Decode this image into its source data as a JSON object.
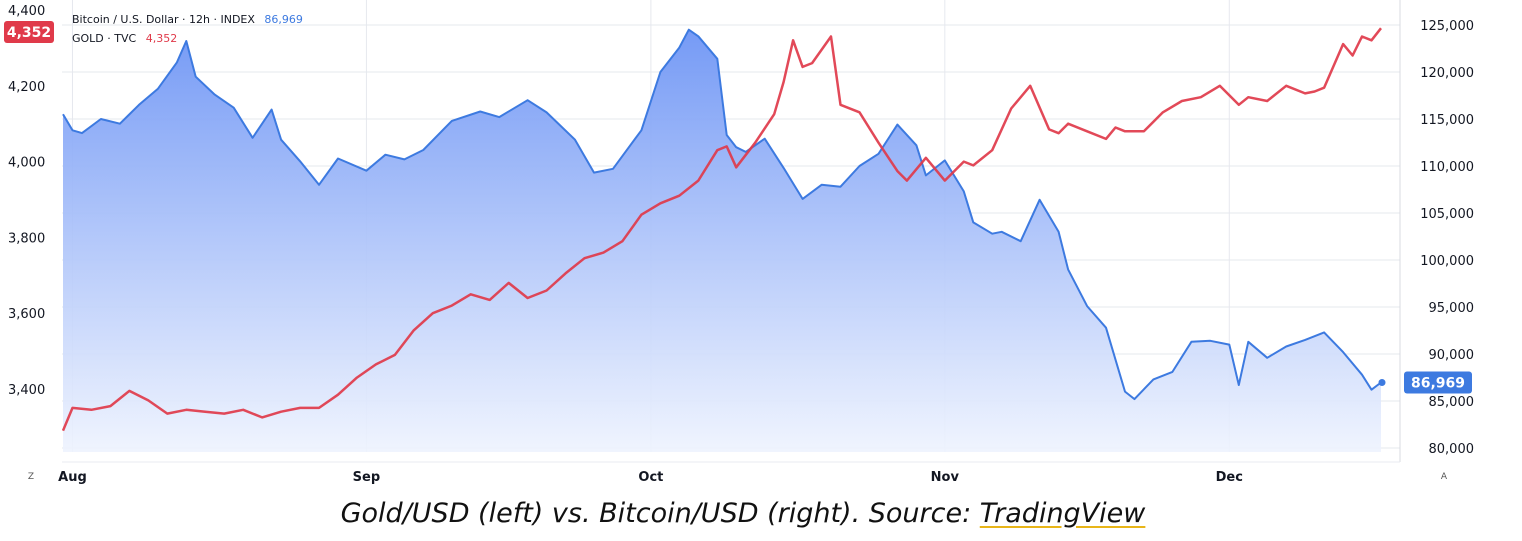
{
  "legend": {
    "btc_label": "Bitcoin / U.S. Dollar · 12h · INDEX",
    "btc_value": "86,969",
    "gold_label": "GOLD · TVC",
    "gold_value": "4,352"
  },
  "badges": {
    "gold_last": "4,352",
    "btc_last": "86,969"
  },
  "controls": {
    "left_button": "Z",
    "right_button": "A"
  },
  "caption": {
    "text": "Gold/USD (left) vs. Bitcoin/USD (right). Source: ",
    "link": "TradingView"
  },
  "colors": {
    "gold": "#e03a4a",
    "btc": "#3d7ae0",
    "btc_fill_top": "#6e95f5",
    "btc_fill_bottom": "#eef3fe",
    "overlap": "#a24a8a",
    "grid": "#e6e8ee"
  },
  "chart_data": {
    "type": "line",
    "x_axis": {
      "type": "time",
      "range": [
        "2025-07-31",
        "2025-12-17"
      ],
      "ticks": [
        {
          "date": "2025-08-01",
          "label": "Aug"
        },
        {
          "date": "2025-09-01",
          "label": "Sep"
        },
        {
          "date": "2025-10-01",
          "label": "Oct"
        },
        {
          "date": "2025-11-01",
          "label": "Nov"
        },
        {
          "date": "2025-12-01",
          "label": "Dec"
        }
      ]
    },
    "left_axis": {
      "range": [
        3280,
        4400
      ],
      "ticks": [
        "3,400",
        "3,600",
        "3,800",
        "4,000",
        "4,200",
        "4,400"
      ]
    },
    "right_axis": {
      "range": [
        80000,
        126000
      ],
      "ticks": [
        "80,000",
        "85,000",
        "90,000",
        "95,000",
        "100,000",
        "105,000",
        "110,000",
        "115,000",
        "120,000",
        "125,000"
      ]
    },
    "grid": true,
    "legend_position": "top-left",
    "series": [
      {
        "name": "Bitcoin / U.S. Dollar · 12h · INDEX",
        "axis": "right",
        "style": "area",
        "x": [
          "2025-07-31",
          "2025-08-01",
          "2025-08-02",
          "2025-08-04",
          "2025-08-06",
          "2025-08-08",
          "2025-08-10",
          "2025-08-12",
          "2025-08-13",
          "2025-08-14",
          "2025-08-16",
          "2025-08-18",
          "2025-08-20",
          "2025-08-22",
          "2025-08-23",
          "2025-08-25",
          "2025-08-27",
          "2025-08-29",
          "2025-09-01",
          "2025-09-03",
          "2025-09-05",
          "2025-09-07",
          "2025-09-10",
          "2025-09-13",
          "2025-09-15",
          "2025-09-18",
          "2025-09-20",
          "2025-09-23",
          "2025-09-25",
          "2025-09-27",
          "2025-09-30",
          "2025-10-02",
          "2025-10-04",
          "2025-10-05",
          "2025-10-06",
          "2025-10-08",
          "2025-10-09",
          "2025-10-10",
          "2025-10-11",
          "2025-10-13",
          "2025-10-15",
          "2025-10-17",
          "2025-10-19",
          "2025-10-21",
          "2025-10-23",
          "2025-10-25",
          "2025-10-27",
          "2025-10-29",
          "2025-10-30",
          "2025-11-01",
          "2025-11-03",
          "2025-11-04",
          "2025-11-06",
          "2025-11-07",
          "2025-11-09",
          "2025-11-11",
          "2025-11-13",
          "2025-11-14",
          "2025-11-16",
          "2025-11-18",
          "2025-11-20",
          "2025-11-21",
          "2025-11-23",
          "2025-11-25",
          "2025-11-27",
          "2025-11-29",
          "2025-12-01",
          "2025-12-02",
          "2025-12-03",
          "2025-12-05",
          "2025-12-07",
          "2025-12-09",
          "2025-12-11",
          "2025-12-13",
          "2025-12-15",
          "2025-12-16",
          "2025-12-17"
        ],
        "values": [
          115500,
          113800,
          113500,
          115000,
          114500,
          116500,
          118200,
          121000,
          123300,
          119500,
          117600,
          116200,
          113000,
          116000,
          112800,
          110500,
          108000,
          110800,
          109500,
          111200,
          110700,
          111700,
          114800,
          115800,
          115200,
          117000,
          115700,
          112800,
          109300,
          109700,
          113800,
          120000,
          122600,
          124500,
          123800,
          121400,
          113300,
          112000,
          111500,
          112900,
          109800,
          106500,
          108000,
          107800,
          110000,
          111300,
          114400,
          112200,
          109000,
          110600,
          107300,
          104000,
          102800,
          103000,
          102000,
          106400,
          103000,
          99000,
          95100,
          92800,
          86000,
          85200,
          87300,
          88100,
          91300,
          91400,
          91000,
          86700,
          91300,
          89600,
          90800,
          91500,
          92300,
          90200,
          87800,
          86200,
          86969
        ]
      },
      {
        "name": "GOLD · TVC",
        "axis": "left",
        "style": "line",
        "x": [
          "2025-07-31",
          "2025-08-01",
          "2025-08-03",
          "2025-08-05",
          "2025-08-07",
          "2025-08-09",
          "2025-08-11",
          "2025-08-13",
          "2025-08-15",
          "2025-08-17",
          "2025-08-19",
          "2025-08-21",
          "2025-08-23",
          "2025-08-25",
          "2025-08-27",
          "2025-08-29",
          "2025-08-31",
          "2025-09-02",
          "2025-09-04",
          "2025-09-06",
          "2025-09-08",
          "2025-09-10",
          "2025-09-12",
          "2025-09-14",
          "2025-09-16",
          "2025-09-18",
          "2025-09-20",
          "2025-09-22",
          "2025-09-24",
          "2025-09-26",
          "2025-09-28",
          "2025-09-30",
          "2025-10-02",
          "2025-10-04",
          "2025-10-06",
          "2025-10-08",
          "2025-10-09",
          "2025-10-10",
          "2025-10-12",
          "2025-10-14",
          "2025-10-15",
          "2025-10-16",
          "2025-10-17",
          "2025-10-18",
          "2025-10-20",
          "2025-10-21",
          "2025-10-23",
          "2025-10-25",
          "2025-10-27",
          "2025-10-28",
          "2025-10-30",
          "2025-11-01",
          "2025-11-03",
          "2025-11-04",
          "2025-11-06",
          "2025-11-08",
          "2025-11-10",
          "2025-11-12",
          "2025-11-13",
          "2025-11-14",
          "2025-11-16",
          "2025-11-18",
          "2025-11-19",
          "2025-11-20",
          "2025-11-22",
          "2025-11-24",
          "2025-11-26",
          "2025-11-28",
          "2025-11-30",
          "2025-12-02",
          "2025-12-03",
          "2025-12-05",
          "2025-12-07",
          "2025-12-09",
          "2025-12-10",
          "2025-12-11",
          "2025-12-13",
          "2025-12-14",
          "2025-12-15",
          "2025-12-16",
          "2025-12-17"
        ],
        "values": [
          3290,
          3350,
          3345,
          3355,
          3395,
          3370,
          3335,
          3345,
          3340,
          3335,
          3345,
          3325,
          3340,
          3350,
          3350,
          3385,
          3430,
          3465,
          3490,
          3555,
          3600,
          3620,
          3650,
          3635,
          3680,
          3640,
          3660,
          3705,
          3745,
          3760,
          3790,
          3860,
          3890,
          3910,
          3950,
          4030,
          4040,
          3985,
          4050,
          4125,
          4210,
          4320,
          4250,
          4260,
          4330,
          4150,
          4130,
          4050,
          3975,
          3950,
          4010,
          3950,
          4000,
          3990,
          4030,
          4140,
          4200,
          4085,
          4075,
          4100,
          4080,
          4060,
          4090,
          4080,
          4080,
          4130,
          4160,
          4170,
          4200,
          4150,
          4170,
          4160,
          4200,
          4180,
          4185,
          4195,
          4310,
          4280,
          4330,
          4320,
          4352
        ]
      }
    ]
  }
}
